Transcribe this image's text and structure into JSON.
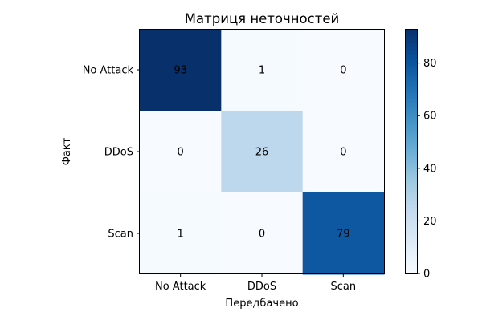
{
  "chart_data": {
    "type": "heatmap",
    "title": "Матриця неточностей",
    "xlabel": "Передбачено",
    "ylabel": "Факт",
    "x_categories": [
      "No Attack",
      "DDoS",
      "Scan"
    ],
    "y_categories": [
      "No Attack",
      "DDoS",
      "Scan"
    ],
    "values": [
      [
        93,
        1,
        0
      ],
      [
        0,
        26,
        0
      ],
      [
        1,
        0,
        79
      ]
    ],
    "colormap": "Blues",
    "vmin": 0,
    "vmax": 93,
    "colorbar_ticks": [
      0,
      20,
      40,
      60,
      80
    ],
    "colorbar_tick_labels": [
      "0",
      "20",
      "40",
      "60",
      "80"
    ],
    "colors": {
      "low": "#f7fbff",
      "high": "#08306b",
      "text": "#000000"
    }
  }
}
